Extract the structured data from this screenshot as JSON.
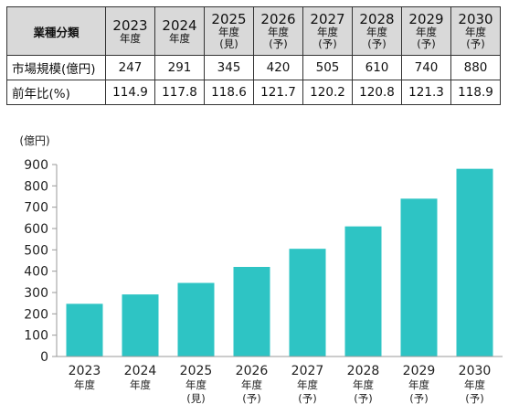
{
  "table": {
    "header_label": "業種分類",
    "columns": [
      {
        "year": "2023",
        "sub1": "年度",
        "sub2": ""
      },
      {
        "year": "2024",
        "sub1": "年度",
        "sub2": ""
      },
      {
        "year": "2025",
        "sub1": "年度",
        "sub2": "(見)"
      },
      {
        "year": "2026",
        "sub1": "年度",
        "sub2": "(予)"
      },
      {
        "year": "2027",
        "sub1": "年度",
        "sub2": "(予)"
      },
      {
        "year": "2028",
        "sub1": "年度",
        "sub2": "(予)"
      },
      {
        "year": "2029",
        "sub1": "年度",
        "sub2": "(予)"
      },
      {
        "year": "2030",
        "sub1": "年度",
        "sub2": "(予)"
      }
    ],
    "rows": [
      {
        "label": "市場規模(億円)",
        "values": [
          "247",
          "291",
          "345",
          "420",
          "505",
          "610",
          "740",
          "880"
        ]
      },
      {
        "label": "前年比(%)",
        "values": [
          "114.9",
          "117.8",
          "118.6",
          "121.7",
          "120.2",
          "120.8",
          "121.3",
          "118.9"
        ]
      }
    ]
  },
  "chart_data": {
    "type": "bar",
    "title": "",
    "ylabel": "(億円)",
    "xlabel": "",
    "ylim": [
      0,
      900
    ],
    "yticks": [
      0,
      100,
      200,
      300,
      400,
      500,
      600,
      700,
      800,
      900
    ],
    "grid": false,
    "legend": "none",
    "categories": [
      {
        "year": "2023",
        "sub1": "年度",
        "sub2": ""
      },
      {
        "year": "2024",
        "sub1": "年度",
        "sub2": ""
      },
      {
        "year": "2025",
        "sub1": "年度",
        "sub2": "(見)"
      },
      {
        "year": "2026",
        "sub1": "年度",
        "sub2": "(予)"
      },
      {
        "year": "2027",
        "sub1": "年度",
        "sub2": "(予)"
      },
      {
        "year": "2028",
        "sub1": "年度",
        "sub2": "(予)"
      },
      {
        "year": "2029",
        "sub1": "年度",
        "sub2": "(予)"
      },
      {
        "year": "2030",
        "sub1": "年度",
        "sub2": "(予)"
      }
    ],
    "values": [
      247,
      291,
      345,
      420,
      505,
      610,
      740,
      880
    ],
    "bar_color": "#2ec4c4",
    "axis_color": "#999999"
  }
}
